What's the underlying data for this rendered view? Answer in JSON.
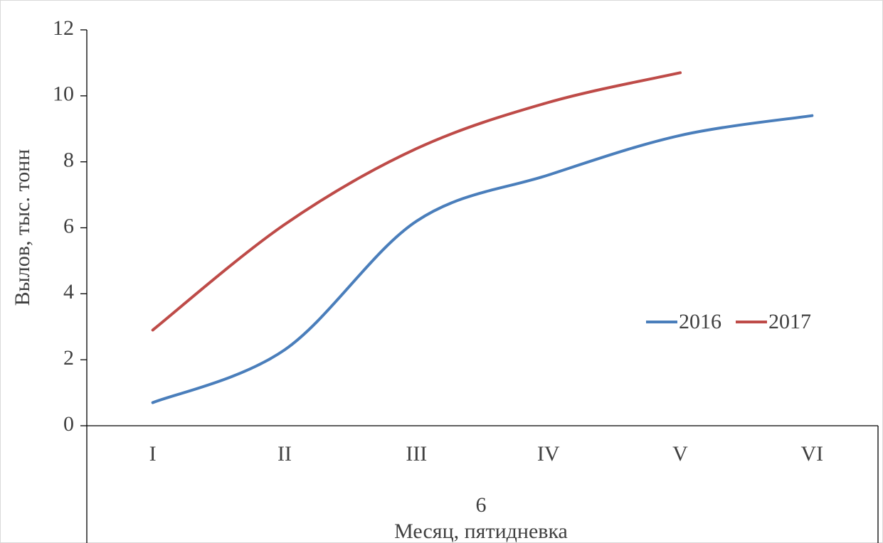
{
  "chart_data": {
    "type": "line",
    "categories": [
      "I",
      "II",
      "III",
      "IV",
      "V",
      "VI"
    ],
    "x_group": "6",
    "x_label": "Месяц, пятидневка",
    "y_label": "Вылов, тыс. тонн",
    "series": [
      {
        "name": "2016",
        "color": "#4a7ebb",
        "values": [
          0.7,
          2.3,
          6.2,
          7.6,
          8.8,
          9.4
        ]
      },
      {
        "name": "2017",
        "color": "#be4b48",
        "values": [
          2.9,
          6.1,
          8.4,
          9.8,
          10.7,
          null
        ]
      }
    ],
    "ylim": [
      0,
      12
    ],
    "yticks": [
      0,
      2,
      4,
      6,
      8,
      10,
      12
    ],
    "legend": "right",
    "smooth": true
  }
}
